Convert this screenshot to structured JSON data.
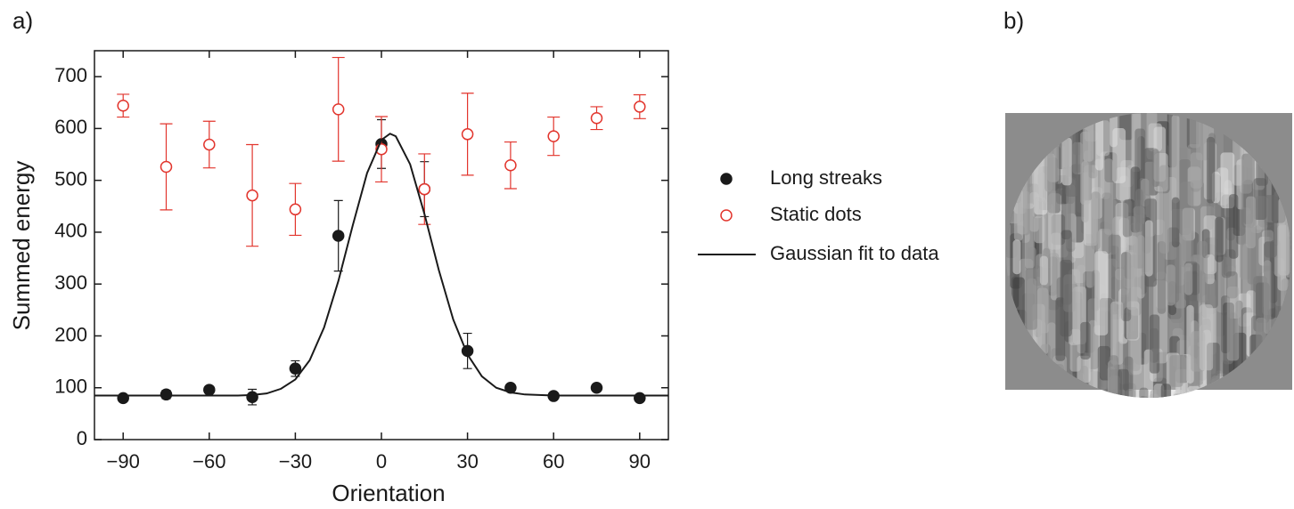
{
  "chart_data": {
    "type": "scatter",
    "panel_label": "a)",
    "x_label": "Orientation",
    "y_label": "Summed energy",
    "xlim": [
      -100,
      100
    ],
    "ylim": [
      0,
      750
    ],
    "xticks": [
      {
        "value": -90,
        "label": "−90"
      },
      {
        "value": -60,
        "label": "−60"
      },
      {
        "value": -30,
        "label": "−30"
      },
      0,
      30,
      60,
      90
    ],
    "yticks": [
      0,
      100,
      200,
      300,
      400,
      500,
      600,
      700
    ],
    "series": [
      {
        "name": "Long streaks",
        "color": "#1a1a1a",
        "marker": "filled",
        "x": [
          -90,
          -75,
          -60,
          -45,
          -30,
          -15,
          0,
          15,
          30,
          45,
          60,
          75,
          90
        ],
        "values": [
          80,
          87,
          96,
          82,
          137,
          393,
          570,
          483,
          171,
          100,
          84,
          100,
          80
        ],
        "errors": [
          5,
          8,
          6,
          15,
          15,
          68,
          47,
          53,
          34,
          5,
          5,
          7,
          5
        ]
      },
      {
        "name": "Static dots",
        "color": "#e2352d",
        "marker": "open",
        "x": [
          -90,
          -75,
          -60,
          -45,
          -30,
          -15,
          0,
          15,
          30,
          45,
          60,
          75,
          90
        ],
        "values": [
          644,
          526,
          569,
          471,
          444,
          637,
          560,
          483,
          589,
          529,
          585,
          620,
          642
        ],
        "errors": [
          22,
          83,
          45,
          98,
          50,
          100,
          63,
          68,
          79,
          45,
          37,
          22,
          23
        ]
      },
      {
        "name": "Gaussian fit to data",
        "color": "#1a1a1a",
        "marker": "line",
        "x": [
          -100,
          -90,
          -80,
          -70,
          -60,
          -50,
          -45,
          -40,
          -35,
          -30,
          -25,
          -20,
          -15,
          -10,
          -5,
          0,
          3,
          5,
          10,
          15,
          20,
          25,
          30,
          35,
          40,
          45,
          50,
          60,
          70,
          80,
          90,
          100
        ],
        "values": [
          85,
          85,
          85,
          85,
          85,
          85,
          86,
          89,
          98,
          116,
          153,
          216,
          306,
          413,
          514,
          578,
          590,
          585,
          531,
          435,
          327,
          232,
          164,
          122,
          100,
          91,
          87,
          85,
          85,
          85,
          85,
          85
        ]
      }
    ]
  },
  "image_panel": {
    "label": "b)"
  }
}
